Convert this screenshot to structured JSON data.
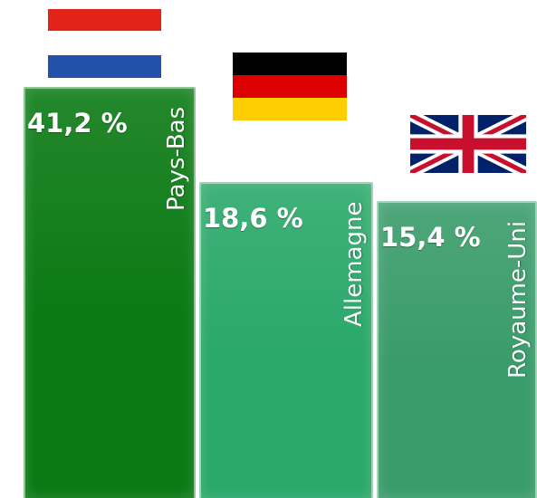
{
  "chart_data": {
    "type": "bar",
    "categories": [
      "Pays-Bas",
      "Allemagne",
      "Royaume-Uni"
    ],
    "values": [
      41.2,
      18.6,
      15.4
    ],
    "value_labels": [
      "41,2 %",
      "18,6 %",
      "15,4 %"
    ],
    "flag_icons": [
      "netherlands-flag-icon",
      "germany-flag-icon",
      "united-kingdom-flag-icon"
    ],
    "colors": [
      "#0b7a14",
      "#2aa86a",
      "#3a9c6a"
    ],
    "title": "",
    "xlabel": "",
    "ylabel": "",
    "ylim": [
      0,
      41.2
    ],
    "grid": false,
    "legend": "none"
  }
}
